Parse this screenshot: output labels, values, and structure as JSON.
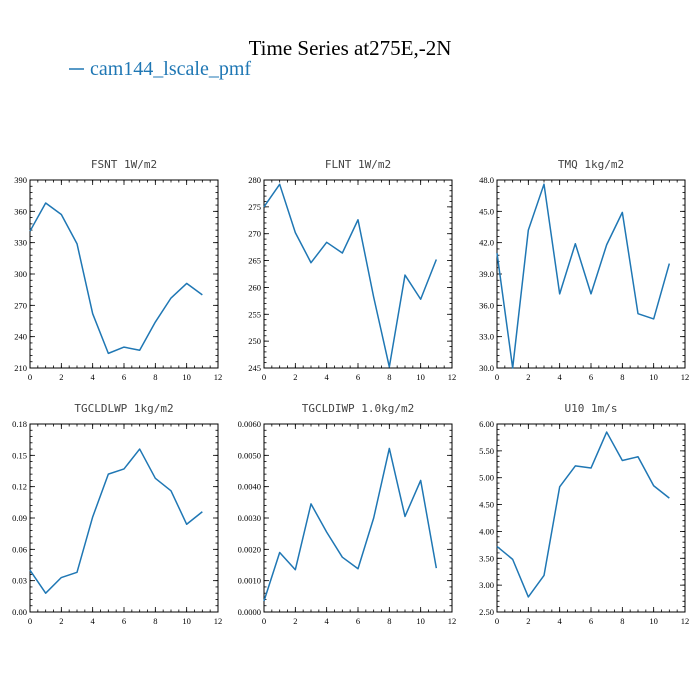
{
  "figure": {
    "title": "Time Series at275E,-2N",
    "legend": {
      "label": "cam144_lscale_pmf",
      "color": "#1f77b4"
    }
  },
  "chart_data": [
    {
      "type": "line",
      "title": "FSNT   1W/m2",
      "x": [
        0,
        1,
        2,
        3,
        4,
        5,
        6,
        7,
        8,
        9,
        10,
        11
      ],
      "series": [
        {
          "name": "cam144_lscale_pmf",
          "values": [
            341,
            368,
            357,
            329,
            262,
            224,
            230,
            227,
            254,
            277,
            291,
            280
          ]
        }
      ],
      "xlim": [
        0,
        12
      ],
      "ylim": [
        210,
        390
      ],
      "xticks": [
        "0",
        "2",
        "4",
        "6",
        "8",
        "10",
        "12"
      ],
      "yticks": [
        "210",
        "240",
        "270",
        "300",
        "330",
        "360",
        "390"
      ]
    },
    {
      "type": "line",
      "title": "FLNT   1W/m2",
      "x": [
        0,
        1,
        2,
        3,
        4,
        5,
        6,
        7,
        8,
        9,
        10,
        11
      ],
      "series": [
        {
          "name": "cam144_lscale_pmf",
          "values": [
            275,
            279.2,
            270.2,
            264.6,
            268.4,
            266.4,
            272.6,
            258.2,
            245.2,
            262.3,
            257.8,
            265.2
          ]
        }
      ],
      "xlim": [
        0,
        12
      ],
      "ylim": [
        245,
        280
      ],
      "xticks": [
        "0",
        "2",
        "4",
        "6",
        "8",
        "10",
        "12"
      ],
      "yticks": [
        "245",
        "250",
        "255",
        "260",
        "265",
        "270",
        "275",
        "280"
      ]
    },
    {
      "type": "line",
      "title": "TMQ   1kg/m2",
      "x": [
        0,
        1,
        2,
        3,
        4,
        5,
        6,
        7,
        8,
        9,
        10,
        11
      ],
      "series": [
        {
          "name": "cam144_lscale_pmf",
          "values": [
            41.0,
            30.0,
            43.2,
            47.6,
            37.1,
            41.9,
            37.1,
            41.8,
            44.9,
            35.2,
            34.7,
            40.0
          ]
        }
      ],
      "xlim": [
        0,
        12
      ],
      "ylim": [
        30,
        48
      ],
      "xticks": [
        "0",
        "2",
        "4",
        "6",
        "8",
        "10",
        "12"
      ],
      "yticks": [
        "30.0",
        "33.0",
        "36.0",
        "39.0",
        "42.0",
        "45.0",
        "48.0"
      ]
    },
    {
      "type": "line",
      "title": "TGCLDLWP   1kg/m2",
      "x": [
        0,
        1,
        2,
        3,
        4,
        5,
        6,
        7,
        8,
        9,
        10,
        11
      ],
      "series": [
        {
          "name": "cam144_lscale_pmf",
          "values": [
            0.04,
            0.018,
            0.033,
            0.038,
            0.091,
            0.132,
            0.137,
            0.156,
            0.128,
            0.116,
            0.084,
            0.096
          ]
        }
      ],
      "xlim": [
        0,
        12
      ],
      "ylim": [
        0,
        0.18
      ],
      "xticks": [
        "0",
        "2",
        "4",
        "6",
        "8",
        "10",
        "12"
      ],
      "yticks": [
        "0.00",
        "0.03",
        "0.06",
        "0.09",
        "0.12",
        "0.15",
        "0.18"
      ]
    },
    {
      "type": "line",
      "title": "TGCLDIWP   1.0kg/m2",
      "x": [
        0,
        1,
        2,
        3,
        4,
        5,
        6,
        7,
        8,
        9,
        10,
        11
      ],
      "series": [
        {
          "name": "cam144_lscale_pmf",
          "values": [
            0.00035,
            0.0019,
            0.00135,
            0.00345,
            0.00255,
            0.00175,
            0.00138,
            0.003,
            0.00522,
            0.00305,
            0.0042,
            0.0014
          ]
        }
      ],
      "xlim": [
        0,
        12
      ],
      "ylim": [
        0,
        0.006
      ],
      "xticks": [
        "0",
        "2",
        "4",
        "6",
        "8",
        "10",
        "12"
      ],
      "yticks": [
        "0.0000",
        "0.0010",
        "0.0020",
        "0.0030",
        "0.0040",
        "0.0050",
        "0.0060"
      ]
    },
    {
      "type": "line",
      "title": "U10   1m/s",
      "x": [
        0,
        1,
        2,
        3,
        4,
        5,
        6,
        7,
        8,
        9,
        10,
        11
      ],
      "series": [
        {
          "name": "cam144_lscale_pmf",
          "values": [
            3.72,
            3.48,
            2.78,
            3.18,
            4.83,
            5.22,
            5.18,
            5.85,
            5.32,
            5.39,
            4.85,
            4.62
          ]
        }
      ],
      "xlim": [
        0,
        12
      ],
      "ylim": [
        2.5,
        6.0
      ],
      "xticks": [
        "0",
        "2",
        "4",
        "6",
        "8",
        "10",
        "12"
      ],
      "yticks": [
        "2.50",
        "3.00",
        "3.50",
        "4.00",
        "4.50",
        "5.00",
        "5.50",
        "6.00"
      ]
    }
  ]
}
